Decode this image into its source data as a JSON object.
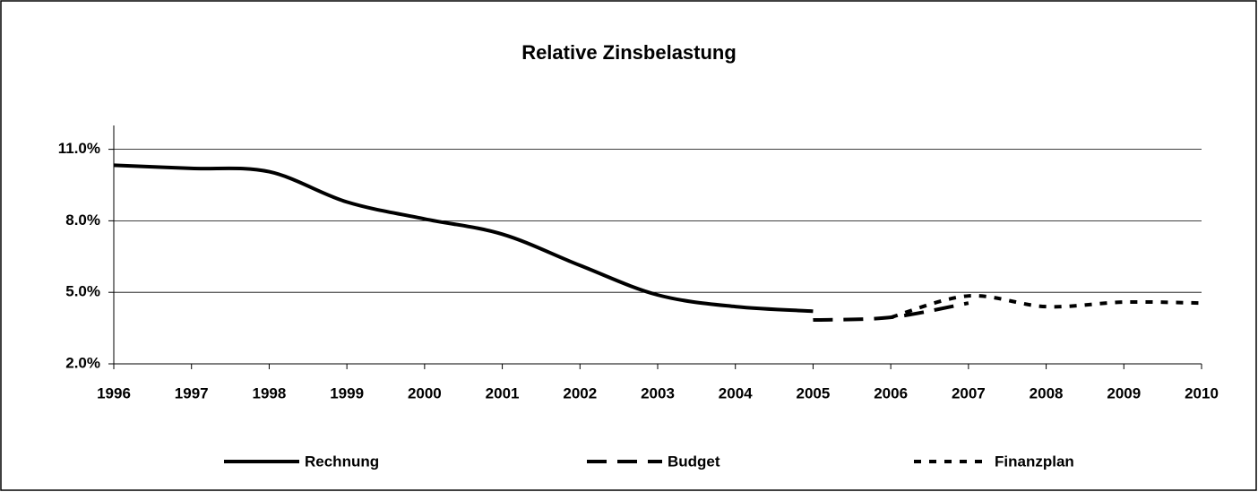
{
  "chart_data": {
    "type": "line",
    "title": "Relative Zinsbelastung",
    "x": [
      1996,
      1997,
      1998,
      1999,
      2000,
      2001,
      2002,
      2003,
      2004,
      2005,
      2006,
      2007,
      2008,
      2009,
      2010
    ],
    "xlim": [
      1996,
      2010
    ],
    "xticks": [
      1996,
      1997,
      1998,
      1999,
      2000,
      2001,
      2002,
      2003,
      2004,
      2005,
      2006,
      2007,
      2008,
      2009,
      2010
    ],
    "ylim": [
      2,
      12
    ],
    "yticks": [
      {
        "value": 2,
        "label": "2.0%"
      },
      {
        "value": 5,
        "label": "5.0%"
      },
      {
        "value": 8,
        "label": "8.0%"
      },
      {
        "value": 11,
        "label": "11.0%"
      }
    ],
    "grid": true,
    "legend": "bottom",
    "series": [
      {
        "name": "Rechnung",
        "color": "#000000",
        "style": "solid",
        "values": [
          10.33,
          10.2,
          10.06,
          8.79,
          8.08,
          7.44,
          6.13,
          4.89,
          4.4,
          4.21,
          null,
          null,
          null,
          null,
          null
        ]
      },
      {
        "name": "Budget",
        "color": "#000000",
        "style": "dashed",
        "values": [
          null,
          null,
          null,
          null,
          null,
          null,
          null,
          null,
          null,
          3.84,
          3.95,
          4.55,
          null,
          null,
          null
        ]
      },
      {
        "name": "Finanzplan",
        "color": "#000000",
        "style": "dotted",
        "values": [
          null,
          null,
          null,
          null,
          null,
          null,
          null,
          null,
          null,
          null,
          3.95,
          4.85,
          4.4,
          4.59,
          4.55
        ]
      }
    ]
  }
}
